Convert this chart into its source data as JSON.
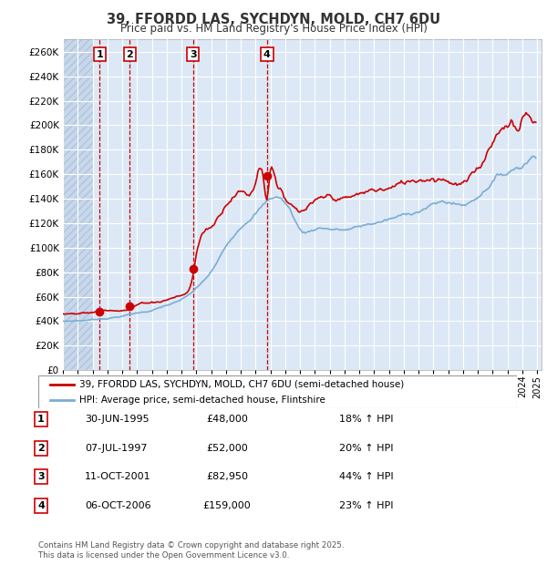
{
  "title1": "39, FFORDD LAS, SYCHDYN, MOLD, CH7 6DU",
  "title2": "Price paid vs. HM Land Registry's House Price Index (HPI)",
  "ylabel_ticks": [
    "£0",
    "£20K",
    "£40K",
    "£60K",
    "£80K",
    "£100K",
    "£120K",
    "£140K",
    "£160K",
    "£180K",
    "£200K",
    "£220K",
    "£240K",
    "£260K"
  ],
  "ytick_values": [
    0,
    20000,
    40000,
    60000,
    80000,
    100000,
    120000,
    140000,
    160000,
    180000,
    200000,
    220000,
    240000,
    260000
  ],
  "ylim": [
    0,
    270000
  ],
  "purchases": [
    {
      "label": "1",
      "date_num": 1995.49,
      "price": 48000
    },
    {
      "label": "2",
      "date_num": 1997.52,
      "price": 52000
    },
    {
      "label": "3",
      "date_num": 2001.78,
      "price": 82950
    },
    {
      "label": "4",
      "date_num": 2006.77,
      "price": 159000
    }
  ],
  "legend_line1": "39, FFORDD LAS, SYCHDYN, MOLD, CH7 6DU (semi-detached house)",
  "legend_line2": "HPI: Average price, semi-detached house, Flintshire",
  "footer1": "Contains HM Land Registry data © Crown copyright and database right 2025.",
  "footer2": "This data is licensed under the Open Government Licence v3.0.",
  "table": [
    {
      "num": "1",
      "date": "30-JUN-1995",
      "price": "£48,000",
      "hpi": "18% ↑ HPI"
    },
    {
      "num": "2",
      "date": "07-JUL-1997",
      "price": "£52,000",
      "hpi": "20% ↑ HPI"
    },
    {
      "num": "3",
      "date": "11-OCT-2001",
      "price": "£82,950",
      "hpi": "44% ↑ HPI"
    },
    {
      "num": "4",
      "date": "06-OCT-2006",
      "price": "£159,000",
      "hpi": "23% ↑ HPI"
    }
  ],
  "plot_color_red": "#cc0000",
  "plot_color_blue": "#7aadd4",
  "bg_color": "#dce8f5",
  "grid_color": "#ffffff",
  "purchase_label_color": "#cc0000"
}
